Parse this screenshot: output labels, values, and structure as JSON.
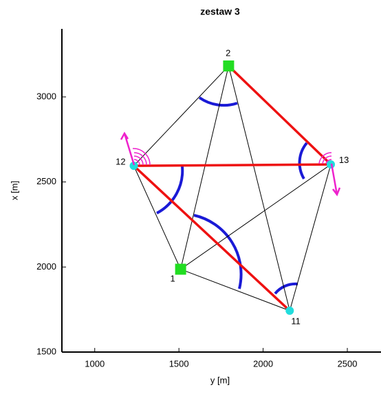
{
  "chart_data": {
    "type": "network",
    "title": "zestaw 3",
    "xlabel": "y [m]",
    "ylabel": "x [m]",
    "xlim": [
      805,
      2700
    ],
    "ylim": [
      1500,
      3400
    ],
    "xticks": [
      1000,
      1500,
      2000,
      2500
    ],
    "yticks": [
      1500,
      2000,
      2500,
      3000
    ],
    "points": [
      {
        "label": "2",
        "y": 1795,
        "x": 3182,
        "fixed": true
      },
      {
        "label": "13",
        "y": 2402,
        "x": 2603,
        "fixed": false
      },
      {
        "label": "12",
        "y": 1232,
        "x": 2595,
        "fixed": false
      },
      {
        "label": "1",
        "y": 1510,
        "x": 1987,
        "fixed": true
      },
      {
        "label": "11",
        "y": 2158,
        "x": 1743,
        "fixed": false
      }
    ],
    "lines": [
      [
        "12",
        "2"
      ],
      [
        "2",
        "1"
      ],
      [
        "2",
        "11"
      ],
      [
        "12",
        "1"
      ],
      [
        "1",
        "13"
      ],
      [
        "1",
        "11"
      ],
      [
        "13",
        "11"
      ]
    ],
    "distances": [
      [
        "2",
        "13"
      ],
      [
        "12",
        "13"
      ],
      [
        "12",
        "11"
      ]
    ],
    "fixed_color": "#22dd22",
    "free_color": "#22dddd",
    "line_color": "#000000",
    "distance_color": "#ee1111"
  }
}
